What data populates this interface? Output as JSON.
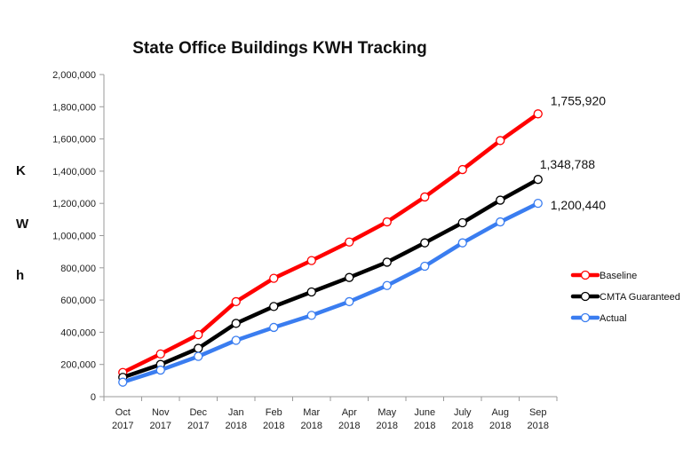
{
  "chart_data": {
    "type": "line",
    "title": "State Office Buildings KWH Tracking",
    "ylabel_letters": [
      "K",
      "W",
      "h"
    ],
    "categories": [
      [
        "Oct",
        "2017"
      ],
      [
        "Nov",
        "2017"
      ],
      [
        "Dec",
        "2017"
      ],
      [
        "Jan",
        "2018"
      ],
      [
        "Feb",
        "2018"
      ],
      [
        "Mar",
        "2018"
      ],
      [
        "Apr",
        "2018"
      ],
      [
        "May",
        "2018"
      ],
      [
        "June",
        "2018"
      ],
      [
        "July",
        "2018"
      ],
      [
        "Aug",
        "2018"
      ],
      [
        "Sep",
        "2018"
      ]
    ],
    "ylim": [
      0,
      2000000
    ],
    "yticks": [
      "0",
      "200,000",
      "400,000",
      "600,000",
      "800,000",
      "1,000,000",
      "1,200,000",
      "1,400,000",
      "1,600,000",
      "1,800,000",
      "2,000,000"
    ],
    "legend_position": "right",
    "grid": false,
    "series": [
      {
        "name": "Baseline",
        "color": "#ff0000",
        "end_label": "1,755,920",
        "values": [
          150000,
          265000,
          385000,
          590000,
          735000,
          845000,
          960000,
          1085000,
          1240000,
          1410000,
          1590000,
          1755920
        ]
      },
      {
        "name": "CMTA Guaranteed",
        "color": "#000000",
        "end_label": "1,348,788",
        "values": [
          120000,
          200000,
          300000,
          455000,
          560000,
          650000,
          740000,
          835000,
          955000,
          1080000,
          1220000,
          1348788
        ]
      },
      {
        "name": "Actual",
        "color": "#3a7df0",
        "end_label": "1,200,440",
        "values": [
          90000,
          165000,
          250000,
          350000,
          430000,
          505000,
          590000,
          690000,
          810000,
          955000,
          1085000,
          1200440
        ]
      }
    ]
  }
}
